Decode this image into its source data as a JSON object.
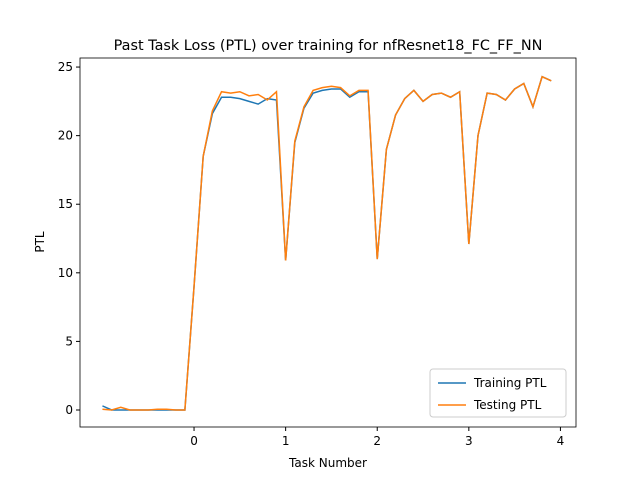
{
  "chart_data": {
    "type": "line",
    "title": "Past Task Loss (PTL) over training for nfResnet18_FC_FF_NN",
    "x_label": "Task Number",
    "y_label": "PTL",
    "x": [
      -1.0,
      -0.9,
      -0.8,
      -0.7,
      -0.6,
      -0.5,
      -0.4,
      -0.3,
      -0.2,
      -0.1,
      0.0,
      0.1,
      0.2,
      0.3,
      0.4,
      0.5,
      0.6,
      0.7,
      0.8,
      0.9,
      1.0,
      1.1,
      1.2,
      1.3,
      1.4,
      1.5,
      1.6,
      1.7,
      1.8,
      1.9,
      2.0,
      2.1,
      2.2,
      2.3,
      2.4,
      2.5,
      2.6,
      2.7,
      2.8,
      2.9,
      3.0,
      3.1,
      3.2,
      3.3,
      3.4,
      3.5,
      3.6,
      3.7,
      3.8,
      3.9
    ],
    "series": [
      {
        "name": "Training PTL",
        "color": "#1f77b4",
        "values": [
          0.3,
          0.0,
          0.0,
          0.0,
          0.0,
          0.0,
          0.0,
          0.0,
          0.0,
          0.0,
          9.0,
          18.5,
          21.6,
          22.8,
          22.8,
          22.7,
          22.5,
          22.3,
          22.7,
          22.6,
          10.9,
          19.5,
          22.0,
          23.1,
          23.3,
          23.4,
          23.4,
          22.8,
          23.2,
          23.2,
          11.0,
          19.0,
          21.5,
          22.7,
          23.3,
          22.5,
          23.0,
          23.1,
          22.8,
          23.2,
          12.1,
          20.0,
          23.1,
          23.0,
          22.6,
          23.4,
          23.8,
          22.1,
          24.3,
          24.0
        ]
      },
      {
        "name": "Testing PTL",
        "color": "#ff7f0e",
        "values": [
          0.05,
          0.0,
          0.2,
          0.0,
          0.0,
          0.0,
          0.05,
          0.05,
          0.0,
          0.0,
          9.0,
          18.5,
          21.8,
          23.2,
          23.1,
          23.2,
          22.9,
          23.0,
          22.6,
          23.2,
          10.9,
          19.6,
          22.1,
          23.3,
          23.5,
          23.6,
          23.5,
          22.9,
          23.3,
          23.3,
          11.0,
          19.0,
          21.5,
          22.7,
          23.3,
          22.5,
          23.0,
          23.1,
          22.8,
          23.2,
          12.1,
          20.0,
          23.1,
          23.0,
          22.6,
          23.4,
          23.8,
          22.1,
          24.3,
          24.0
        ]
      }
    ],
    "xlim": [
      -1.245,
      4.17
    ],
    "ylim": [
      -1.24,
      25.66
    ],
    "xticks": [
      0,
      1,
      2,
      3,
      4
    ],
    "yticks": [
      0,
      5,
      10,
      15,
      20,
      25
    ],
    "legend": "lower right"
  }
}
